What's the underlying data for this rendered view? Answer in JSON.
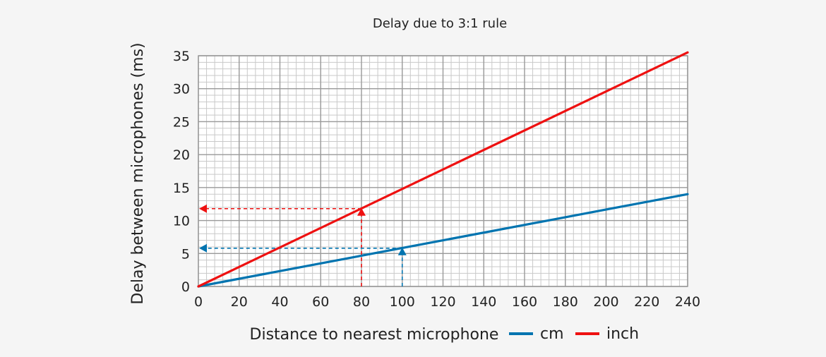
{
  "chart_data": {
    "type": "line",
    "title": "Delay due to 3:1 rule",
    "xlabel": "Distance to nearest microphone",
    "ylabel": "Delay between microphones (ms)",
    "xlim": [
      0,
      240
    ],
    "ylim": [
      0,
      35
    ],
    "xticks": [
      0,
      20,
      40,
      60,
      80,
      100,
      120,
      140,
      160,
      180,
      200,
      220,
      240
    ],
    "yticks": [
      0,
      5,
      10,
      15,
      20,
      25,
      30,
      35
    ],
    "grid": true,
    "legend_position": "bottom",
    "series": [
      {
        "name": "cm",
        "color": "#0074b0",
        "x": [
          0,
          240
        ],
        "y": [
          0,
          14
        ]
      },
      {
        "name": "inch",
        "color": "#ee1111",
        "x": [
          0,
          240
        ],
        "y": [
          0,
          35.5
        ]
      }
    ],
    "annotations": [
      {
        "series": "inch",
        "x": 80,
        "y": 11.8,
        "color": "#ee1111"
      },
      {
        "series": "cm",
        "x": 100,
        "y": 5.8,
        "color": "#0074b0"
      }
    ]
  }
}
